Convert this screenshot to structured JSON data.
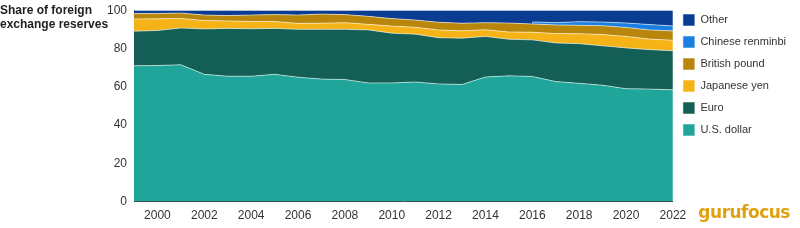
{
  "chart_data": {
    "type": "area",
    "y_label": "Share of foreign exchange reserves",
    "annotations": [
      "gurufocus"
    ],
    "stacked": true,
    "grid": false,
    "legend": "right",
    "x": [
      1999,
      2000,
      2001,
      2002,
      2003,
      2004,
      2005,
      2006,
      2007,
      2008,
      2009,
      2010,
      2011,
      2012,
      2013,
      2014,
      2015,
      2016,
      2017,
      2018,
      2019,
      2020,
      2021,
      2022
    ],
    "xlim": [
      1999,
      2022
    ],
    "xticks": [
      2000,
      2002,
      2004,
      2006,
      2008,
      2010,
      2012,
      2014,
      2016,
      2018,
      2020,
      2022
    ],
    "ylim": [
      0,
      100
    ],
    "yticks": [
      0,
      20,
      40,
      60,
      80,
      100
    ],
    "series": [
      {
        "name": "U.S. dollar",
        "color": "#1fa59a",
        "values": [
          71,
          71.1,
          71.5,
          66.5,
          65.5,
          65.5,
          66.5,
          65,
          64,
          63.8,
          62,
          62,
          62.5,
          61.5,
          61.2,
          65.1,
          65.7,
          65.4,
          62.7,
          61.8,
          60.8,
          59,
          58.8,
          58.4
        ]
      },
      {
        "name": "Euro",
        "color": "#135e55",
        "values": [
          18,
          18.3,
          19.2,
          23.7,
          25,
          24.8,
          24,
          25,
          26,
          26.2,
          27.7,
          26,
          25,
          24.1,
          24.2,
          21.2,
          19.1,
          19.1,
          20.2,
          20.7,
          20.6,
          21.3,
          20.6,
          20.4
        ]
      },
      {
        "name": "Japanese yen",
        "color": "#f5b317",
        "values": [
          6.4,
          6.1,
          5.0,
          4.4,
          3.9,
          3.8,
          3.6,
          3.1,
          3.2,
          3.5,
          2.9,
          3.7,
          3.6,
          4.1,
          3.8,
          3.5,
          3.8,
          4.0,
          4.9,
          5.2,
          5.9,
          6.0,
          5.5,
          5.5
        ]
      },
      {
        "name": "British pound",
        "color": "#b8860b",
        "values": [
          2.9,
          2.8,
          2.8,
          2.9,
          2.8,
          3.4,
          3.6,
          4.4,
          4.8,
          4.2,
          4.2,
          3.9,
          3.8,
          4.0,
          4.0,
          3.7,
          4.7,
          4.3,
          4.5,
          4.4,
          4.6,
          4.7,
          4.8,
          4.9
        ]
      },
      {
        "name": "Chinese renminbi",
        "color": "#1a7fe0",
        "values": [
          null,
          null,
          null,
          null,
          null,
          null,
          null,
          null,
          null,
          null,
          null,
          null,
          null,
          null,
          null,
          null,
          null,
          1.1,
          1.2,
          1.9,
          1.9,
          2.3,
          2.8,
          2.6
        ]
      },
      {
        "name": "Other",
        "color": "#0a3d91",
        "values": [
          1.7,
          1.7,
          1.5,
          2.5,
          2.8,
          2.5,
          2.3,
          2.5,
          2.0,
          2.3,
          3.2,
          4.4,
          5.1,
          6.3,
          6.8,
          6.5,
          6.7,
          6.1,
          6.5,
          6,
          6.2,
          6.7,
          7.5,
          8.2
        ]
      }
    ]
  }
}
